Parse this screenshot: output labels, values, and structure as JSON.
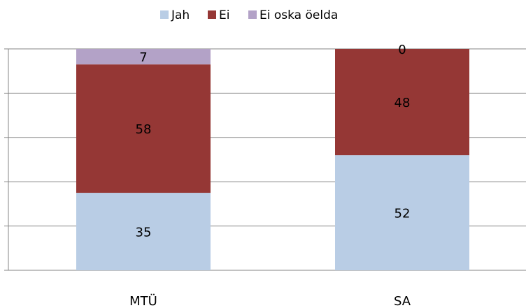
{
  "chart_data": {
    "type": "stacked_bar",
    "categories": [
      "MTÜ",
      "SA"
    ],
    "series": [
      {
        "name": "Jah",
        "color": "#b9cde5",
        "values": [
          35,
          52
        ]
      },
      {
        "name": "Ei",
        "color": "#953735",
        "values": [
          58,
          48
        ]
      },
      {
        "name": "Ei oska öelda",
        "color": "#b3a2c7",
        "values": [
          7,
          0
        ]
      }
    ],
    "ylim": [
      0,
      100
    ],
    "yticks": [
      0,
      20,
      40,
      60,
      80,
      100
    ],
    "grid": true,
    "legend": "top"
  }
}
